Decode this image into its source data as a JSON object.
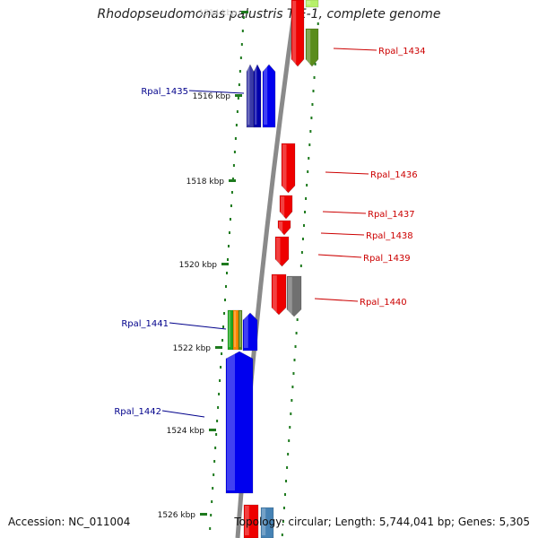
{
  "title": "Rhodopseudomonas palustris TIE-1, complete genome",
  "footer": {
    "accession": "Accession: NC_011004",
    "summary": "Topology: circular; Length: 5,744,041 bp; Genes: 5,305"
  },
  "colors": {
    "backbone": "#8a8a8a",
    "tick": "#1e7a1e",
    "forward_label": "#cc0000",
    "reverse_label": "#00008b"
  },
  "ticks": [
    {
      "label": "1514 kbp",
      "faded": true
    },
    {
      "label": "1516 kbp"
    },
    {
      "label": "1518 kbp"
    },
    {
      "label": "1520 kbp"
    },
    {
      "label": "1522 kbp"
    },
    {
      "label": "1524 kbp"
    },
    {
      "label": "1526 kbp"
    }
  ],
  "gene_labels": {
    "forward": [
      "Rpal_1434",
      "Rpal_1436",
      "Rpal_1437",
      "Rpal_1438",
      "Rpal_1439",
      "Rpal_1440"
    ],
    "reverse": [
      "Rpal_1435",
      "Rpal_1441",
      "Rpal_1442"
    ]
  }
}
